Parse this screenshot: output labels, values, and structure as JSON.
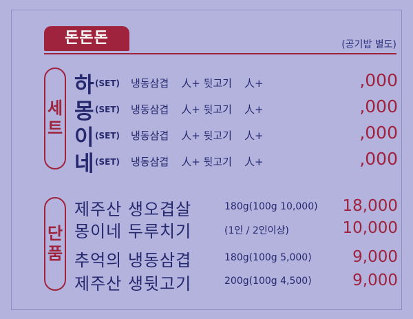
{
  "header": {
    "logo": "돈돈돈",
    "note": "(공기밥 별도)"
  },
  "set_group": {
    "label_chars": [
      "세",
      "트"
    ],
    "items": [
      {
        "name": "하",
        "tag": "(SET)",
        "desc1": "냉동삼겹",
        "desc2": "人+ 뒷고기",
        "desc3": "人+",
        "price": ",000"
      },
      {
        "name": "몽",
        "tag": "(SET)",
        "desc1": "냉동삼겹",
        "desc2": "人+ 뒷고기",
        "desc3": "人+",
        "price": ",000"
      },
      {
        "name": "이",
        "tag": "(SET)",
        "desc1": "냉동삼겹",
        "desc2": "人+ 뒷고기",
        "desc3": "人+",
        "price": ",000"
      },
      {
        "name": "네",
        "tag": "(SET)",
        "desc1": "냉동삼겹",
        "desc2": "人+ 뒷고기",
        "desc3": "人+",
        "price": ",000"
      }
    ]
  },
  "single_group": {
    "label_chars": [
      "단",
      "품"
    ],
    "items": [
      {
        "name": "제주산 생오겹살",
        "desc": "180g(100g 10,000)",
        "price": "18,000"
      },
      {
        "name": "몽이네 두루치기",
        "desc": "(1인 / 2인이상)",
        "price": "10,000"
      },
      {
        "name": "추억의 냉동삼겹",
        "desc": "180g(100g 5,000)",
        "price": "9,000"
      },
      {
        "name": "제주산 생뒷고기",
        "desc": "200g(100g 4,500)",
        "price": "9,000"
      }
    ]
  },
  "colors": {
    "accent": "#a0233e",
    "text": "#26286e",
    "background": "#b3b3de"
  }
}
